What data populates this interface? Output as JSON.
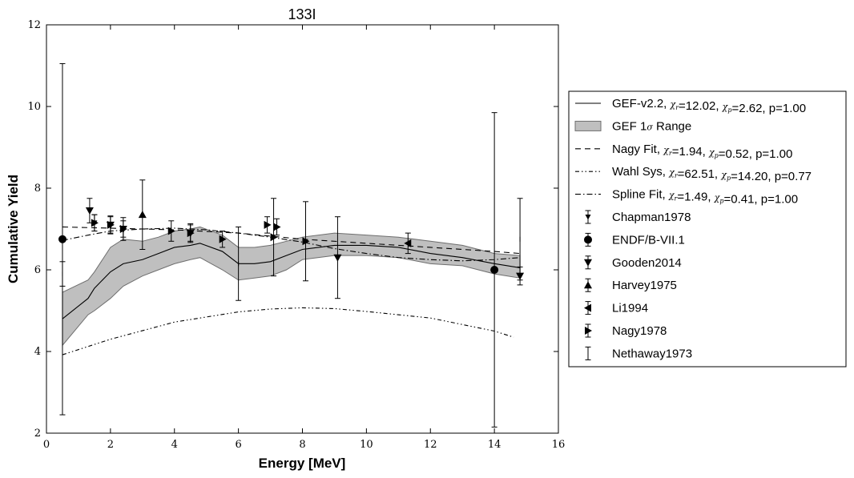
{
  "chart_data": {
    "type": "line",
    "title": "133I",
    "xlabel": "Energy [MeV]",
    "ylabel": "Cumulative Yield",
    "xlim": [
      0,
      16
    ],
    "ylim": [
      2,
      12
    ],
    "xticks": [
      0,
      2,
      4,
      6,
      8,
      10,
      12,
      14,
      16
    ],
    "yticks": [
      2,
      4,
      6,
      8,
      10,
      12
    ],
    "grid": false,
    "legend_position": "outside-right",
    "colors": {
      "band_fill": "#bfbfbf",
      "band_edge": "#6e6e6e",
      "line": "#000000"
    },
    "series": [
      {
        "name": "GEF-v2.2",
        "legend_stats": ", χr=12.02, χp=2.62, p=1.00",
        "kind": "line",
        "style": "solid",
        "x": [
          0.5,
          1.3,
          1.5,
          2.0,
          2.4,
          3.0,
          3.5,
          4.0,
          4.5,
          4.8,
          5.5,
          6.0,
          6.5,
          7.0,
          7.5,
          8.0,
          9.0,
          10.0,
          11.0,
          12.0,
          13.0,
          14.0,
          14.8
        ],
        "y": [
          4.8,
          5.3,
          5.55,
          5.95,
          6.15,
          6.25,
          6.4,
          6.55,
          6.6,
          6.65,
          6.45,
          6.15,
          6.15,
          6.2,
          6.35,
          6.5,
          6.6,
          6.6,
          6.55,
          6.4,
          6.3,
          6.15,
          6.05
        ]
      },
      {
        "name": "GEF 1σ Range",
        "kind": "band",
        "x": [
          0.5,
          1.3,
          1.5,
          2.0,
          2.4,
          3.0,
          3.5,
          4.0,
          4.5,
          4.8,
          5.5,
          6.0,
          6.5,
          7.0,
          7.5,
          8.0,
          9.0,
          10.0,
          11.0,
          12.0,
          13.0,
          14.0,
          14.8
        ],
        "lower": [
          4.15,
          4.9,
          5.0,
          5.3,
          5.6,
          5.85,
          6.0,
          6.15,
          6.25,
          6.3,
          6.0,
          5.75,
          5.8,
          5.85,
          6.0,
          6.25,
          6.35,
          6.35,
          6.3,
          6.15,
          6.1,
          5.9,
          5.8
        ],
        "upper": [
          5.45,
          5.75,
          5.95,
          6.55,
          6.75,
          6.7,
          6.8,
          6.95,
          7.0,
          7.05,
          6.85,
          6.55,
          6.55,
          6.6,
          6.7,
          6.8,
          6.9,
          6.85,
          6.8,
          6.7,
          6.6,
          6.4,
          6.35
        ]
      },
      {
        "name": "Nagy Fit",
        "legend_stats": ", χr=1.94, χp=0.52, p=1.00",
        "kind": "line",
        "style": "dashed",
        "x": [
          0.5,
          2,
          4,
          6,
          8,
          10,
          12,
          14,
          14.8
        ],
        "y": [
          7.05,
          7.02,
          6.98,
          6.9,
          6.75,
          6.65,
          6.55,
          6.45,
          6.4
        ]
      },
      {
        "name": "Wahl Sys",
        "legend_stats": ", χr=62.51, χp=14.20, p=0.77",
        "kind": "line",
        "style": "dashdotdot",
        "x": [
          0.5,
          2,
          4,
          6,
          7,
          8,
          9,
          10,
          12,
          14,
          14.6
        ],
        "y": [
          3.92,
          4.3,
          4.72,
          4.97,
          5.04,
          5.07,
          5.05,
          4.98,
          4.82,
          4.5,
          4.35
        ]
      },
      {
        "name": "Spline Fit",
        "legend_stats": ", χr=1.49, χp=0.41, p=1.00",
        "kind": "line",
        "style": "dashdot",
        "x": [
          0.5,
          1.3,
          2.0,
          3.0,
          4.0,
          5.0,
          6.0,
          7.0,
          8.0,
          9.0,
          10.0,
          11.0,
          12.0,
          13.0,
          14.0,
          14.8
        ],
        "y": [
          6.72,
          6.85,
          6.95,
          7.0,
          7.02,
          6.98,
          6.9,
          6.8,
          6.68,
          6.52,
          6.4,
          6.3,
          6.25,
          6.22,
          6.25,
          6.3
        ]
      },
      {
        "name": "Chapman1978",
        "kind": "points",
        "marker": "tri_down_small",
        "points": [
          {
            "x": 1.5,
            "y": 7.15,
            "err": 0.2
          }
        ]
      },
      {
        "name": "ENDF/B-VII.1",
        "kind": "points",
        "marker": "circle",
        "points": [
          {
            "x": 0.5,
            "y": 6.75,
            "err": 4.3
          },
          {
            "x": 14.0,
            "y": 6.0,
            "err": 3.85
          }
        ]
      },
      {
        "name": "Gooden2014",
        "kind": "points",
        "marker": "tri_down",
        "points": [
          {
            "x": 1.35,
            "y": 7.45,
            "err": 0.3
          },
          {
            "x": 2.0,
            "y": 7.1,
            "err": 0.22
          },
          {
            "x": 2.4,
            "y": 7.0,
            "err": 0.28
          },
          {
            "x": 4.5,
            "y": 6.9,
            "err": 0.23
          },
          {
            "x": 9.1,
            "y": 6.3,
            "err": 1.0
          },
          {
            "x": 14.8,
            "y": 5.85,
            "err": 0.22
          }
        ]
      },
      {
        "name": "Harvey1975",
        "kind": "points",
        "marker": "tri_up",
        "points": [
          {
            "x": 3.0,
            "y": 7.35,
            "err": 0.85
          }
        ]
      },
      {
        "name": "Li1994",
        "kind": "points",
        "marker": "tri_left",
        "points": [
          {
            "x": 11.3,
            "y": 6.65,
            "err": 0.25
          }
        ]
      },
      {
        "name": "Nagy1978",
        "kind": "points",
        "marker": "tri_right",
        "points": [
          {
            "x": 1.5,
            "y": 7.15,
            "err": 0.2
          },
          {
            "x": 2.0,
            "y": 7.1,
            "err": 0.2
          },
          {
            "x": 2.4,
            "y": 7.0,
            "err": 0.2
          },
          {
            "x": 3.9,
            "y": 6.95,
            "err": 0.25
          },
          {
            "x": 4.5,
            "y": 6.9,
            "err": 0.2
          },
          {
            "x": 5.5,
            "y": 6.75,
            "err": 0.2
          },
          {
            "x": 6.9,
            "y": 7.1,
            "err": 0.2
          },
          {
            "x": 7.1,
            "y": 6.8,
            "err": 0.95
          },
          {
            "x": 7.2,
            "y": 7.05,
            "err": 0.2
          },
          {
            "x": 8.1,
            "y": 6.7,
            "err": 0.97
          }
        ]
      },
      {
        "name": "Nethaway1973",
        "kind": "points",
        "marker": "tick",
        "points": [
          {
            "x": 0.5,
            "y": 5.9,
            "err": 0.3
          },
          {
            "x": 6.0,
            "y": 6.15,
            "err": 0.9
          },
          {
            "x": 14.8,
            "y": 6.75,
            "err": 1.0
          }
        ]
      }
    ]
  }
}
